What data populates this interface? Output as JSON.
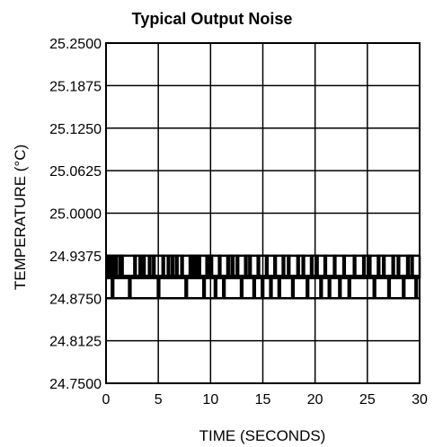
{
  "chart_data": {
    "type": "line",
    "title": "Typical Output Noise",
    "xlabel": "TIME (SECONDS)",
    "ylabel": "TEMPERATURE (°C)",
    "xlim": [
      0,
      30
    ],
    "ylim": [
      24.75,
      25.25
    ],
    "x_ticks": [
      0,
      5,
      10,
      15,
      20,
      25,
      30
    ],
    "x_tick_labels": [
      "0",
      "5",
      "10",
      "15",
      "20",
      "25",
      "30"
    ],
    "y_ticks": [
      24.75,
      24.8125,
      24.875,
      24.9375,
      25.0,
      25.0625,
      25.125,
      25.1875,
      25.25
    ],
    "y_tick_labels": [
      "24.7500",
      "24.8125",
      "24.8750",
      "24.9375",
      "25.0000",
      "25.0625",
      "25.1250",
      "25.1875",
      "25.2500"
    ],
    "grid": true,
    "line_color": "#000000",
    "series": [
      {
        "levels": [
          24.875,
          24.90625,
          24.9375
        ],
        "baseline": 24.90625,
        "points": [
          [
            0.0,
            24.90625
          ],
          [
            0.1,
            24.9375
          ],
          [
            0.3,
            24.90625
          ],
          [
            0.4,
            24.9375
          ],
          [
            0.55,
            24.875
          ],
          [
            0.7,
            24.9375
          ],
          [
            0.9,
            24.90625
          ],
          [
            1.05,
            24.9375
          ],
          [
            1.3,
            24.90625
          ],
          [
            1.45,
            24.9375
          ],
          [
            1.6,
            24.90625
          ],
          [
            2.0,
            24.90625
          ],
          [
            2.2,
            24.875
          ],
          [
            2.35,
            24.90625
          ],
          [
            2.7,
            24.9375
          ],
          [
            2.85,
            24.90625
          ],
          [
            3.2,
            24.9375
          ],
          [
            3.35,
            24.90625
          ],
          [
            3.5,
            24.9375
          ],
          [
            3.7,
            24.90625
          ],
          [
            4.1,
            24.9375
          ],
          [
            4.25,
            24.90625
          ],
          [
            4.5,
            24.9375
          ],
          [
            4.65,
            24.90625
          ],
          [
            4.95,
            24.875
          ],
          [
            5.1,
            24.90625
          ],
          [
            5.4,
            24.9375
          ],
          [
            5.55,
            24.90625
          ],
          [
            5.9,
            24.9375
          ],
          [
            6.05,
            24.90625
          ],
          [
            6.3,
            24.9375
          ],
          [
            6.45,
            24.90625
          ],
          [
            6.7,
            24.9375
          ],
          [
            6.85,
            24.90625
          ],
          [
            7.2,
            24.9375
          ],
          [
            7.35,
            24.90625
          ],
          [
            7.6,
            24.875
          ],
          [
            7.75,
            24.90625
          ],
          [
            8.0,
            24.9375
          ],
          [
            8.2,
            24.90625
          ],
          [
            8.4,
            24.9375
          ],
          [
            8.6,
            24.90625
          ],
          [
            8.8,
            24.9375
          ],
          [
            9.0,
            24.90625
          ],
          [
            9.3,
            24.875
          ],
          [
            9.45,
            24.90625
          ],
          [
            9.6,
            24.9375
          ],
          [
            9.8,
            24.90625
          ],
          [
            10.0,
            24.9375
          ],
          [
            10.15,
            24.90625
          ],
          [
            10.4,
            24.875
          ],
          [
            10.55,
            24.90625
          ],
          [
            10.8,
            24.9375
          ],
          [
            10.95,
            24.90625
          ],
          [
            11.2,
            24.875
          ],
          [
            11.35,
            24.90625
          ],
          [
            11.6,
            24.9375
          ],
          [
            11.75,
            24.90625
          ],
          [
            12.0,
            24.9375
          ],
          [
            12.2,
            24.90625
          ],
          [
            12.5,
            24.9375
          ],
          [
            12.65,
            24.90625
          ],
          [
            12.9,
            24.875
          ],
          [
            13.05,
            24.90625
          ],
          [
            13.3,
            24.9375
          ],
          [
            13.45,
            24.90625
          ],
          [
            13.7,
            24.9375
          ],
          [
            13.85,
            24.90625
          ],
          [
            14.1,
            24.875
          ],
          [
            14.25,
            24.90625
          ],
          [
            14.5,
            24.9375
          ],
          [
            14.65,
            24.90625
          ],
          [
            14.9,
            24.875
          ],
          [
            15.05,
            24.90625
          ],
          [
            15.3,
            24.9375
          ],
          [
            15.45,
            24.90625
          ],
          [
            15.7,
            24.875
          ],
          [
            15.85,
            24.90625
          ],
          [
            16.1,
            24.9375
          ],
          [
            16.25,
            24.90625
          ],
          [
            16.5,
            24.875
          ],
          [
            16.65,
            24.90625
          ],
          [
            16.9,
            24.9375
          ],
          [
            17.05,
            24.90625
          ],
          [
            17.4,
            24.9375
          ],
          [
            17.55,
            24.90625
          ],
          [
            17.8,
            24.875
          ],
          [
            17.95,
            24.90625
          ],
          [
            18.3,
            24.9375
          ],
          [
            18.45,
            24.90625
          ],
          [
            18.8,
            24.9375
          ],
          [
            18.95,
            24.90625
          ],
          [
            19.2,
            24.875
          ],
          [
            19.35,
            24.90625
          ],
          [
            19.6,
            24.9375
          ],
          [
            19.75,
            24.90625
          ],
          [
            20.1,
            24.9375
          ],
          [
            20.25,
            24.90625
          ],
          [
            20.5,
            24.875
          ],
          [
            20.65,
            24.90625
          ],
          [
            20.9,
            24.9375
          ],
          [
            21.05,
            24.90625
          ],
          [
            21.3,
            24.875
          ],
          [
            21.45,
            24.90625
          ],
          [
            21.8,
            24.9375
          ],
          [
            21.95,
            24.90625
          ],
          [
            22.3,
            24.875
          ],
          [
            22.45,
            24.90625
          ],
          [
            22.7,
            24.9375
          ],
          [
            22.85,
            24.90625
          ],
          [
            23.2,
            24.875
          ],
          [
            23.35,
            24.90625
          ],
          [
            23.7,
            24.9375
          ],
          [
            23.85,
            24.90625
          ],
          [
            24.3,
            24.90625
          ],
          [
            24.6,
            24.9375
          ],
          [
            24.75,
            24.90625
          ],
          [
            25.1,
            24.9375
          ],
          [
            25.3,
            24.90625
          ],
          [
            25.6,
            24.875
          ],
          [
            25.75,
            24.90625
          ],
          [
            26.0,
            24.9375
          ],
          [
            26.15,
            24.90625
          ],
          [
            26.5,
            24.9375
          ],
          [
            26.65,
            24.90625
          ],
          [
            27.0,
            24.875
          ],
          [
            27.15,
            24.90625
          ],
          [
            27.4,
            24.9375
          ],
          [
            27.55,
            24.90625
          ],
          [
            27.9,
            24.9375
          ],
          [
            28.05,
            24.90625
          ],
          [
            28.4,
            24.875
          ],
          [
            28.55,
            24.90625
          ],
          [
            28.8,
            24.9375
          ],
          [
            28.95,
            24.90625
          ],
          [
            29.2,
            24.9375
          ],
          [
            29.35,
            24.90625
          ],
          [
            29.6,
            24.875
          ],
          [
            29.75,
            24.90625
          ],
          [
            30.0,
            24.9375
          ]
        ]
      }
    ]
  }
}
